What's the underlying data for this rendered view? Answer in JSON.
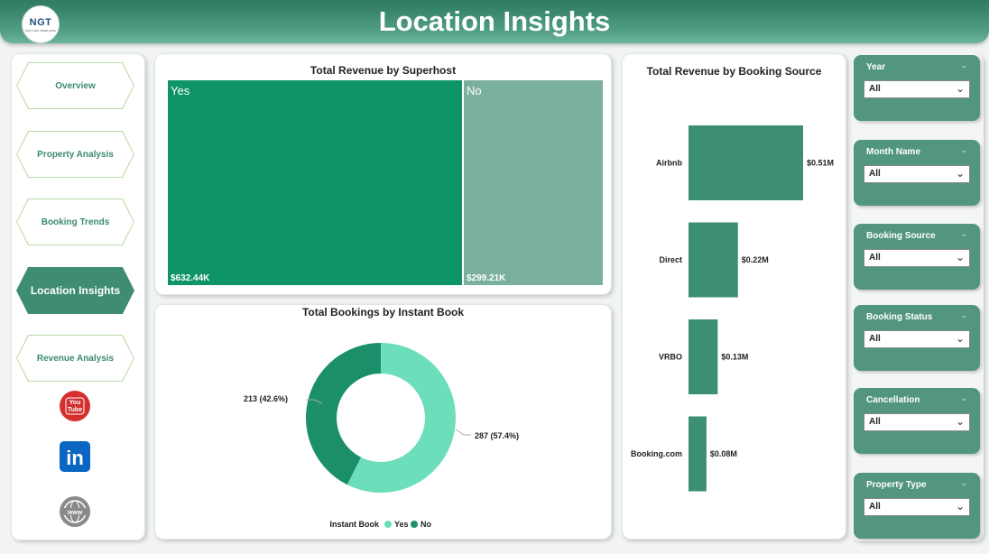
{
  "header": {
    "title": "Location Insights",
    "logo_text": "NGT",
    "logo_subtext": "NEXT GEN TEMPLATES"
  },
  "nav": {
    "items": [
      {
        "label": "Overview",
        "active": false
      },
      {
        "label": "Property Analysis",
        "active": false
      },
      {
        "label": "Booking Trends",
        "active": false
      },
      {
        "label": "Location Insights",
        "active": true
      },
      {
        "label": "Revenue Analysis",
        "active": false
      }
    ],
    "social": [
      {
        "name": "youtube-icon",
        "text_top": "You",
        "text_bottom": "Tube",
        "color": "#d32f2f"
      },
      {
        "name": "linkedin-icon",
        "text": "in",
        "color": "#0a66c2"
      },
      {
        "name": "website-icon",
        "text": "www",
        "color": "#8a8a8a"
      }
    ]
  },
  "superhost_chart": {
    "title": "Total Revenue by Superhost",
    "chart_data": {
      "type": "treemap",
      "categories": [
        "Yes",
        "No"
      ],
      "values": [
        632.44,
        299.21
      ],
      "value_labels": [
        "$632.44K",
        "$299.21K"
      ],
      "colors": [
        "#0f9467",
        "#7cb09e"
      ]
    }
  },
  "instant_book_chart": {
    "title": "Total Bookings by Instant Book",
    "legend_title": "Instant Book",
    "chart_data": {
      "type": "pie",
      "categories": [
        "Yes",
        "No"
      ],
      "values": [
        287,
        213
      ],
      "value_labels": [
        "287 (57.4%)",
        "213 (42.6%)"
      ],
      "colors": [
        "#6cdebb",
        "#1a8f6a"
      ]
    }
  },
  "booking_source_chart": {
    "title": "Total Revenue by Booking Source",
    "chart_data": {
      "type": "bar",
      "categories": [
        "Airbnb",
        "Direct",
        "VRBO",
        "Booking.com"
      ],
      "values": [
        0.51,
        0.22,
        0.13,
        0.08
      ],
      "value_labels": [
        "$0.51M",
        "$0.22M",
        "$0.13M",
        "$0.08M"
      ],
      "color": "#3d8f73"
    }
  },
  "slicers": [
    {
      "title": "Year",
      "value": "All"
    },
    {
      "title": "Month Name",
      "value": "All"
    },
    {
      "title": "Booking Source",
      "value": "All"
    },
    {
      "title": "Booking Status",
      "value": "All"
    },
    {
      "title": "Cancellation",
      "value": "All"
    },
    {
      "title": "Property Type",
      "value": "All"
    }
  ]
}
